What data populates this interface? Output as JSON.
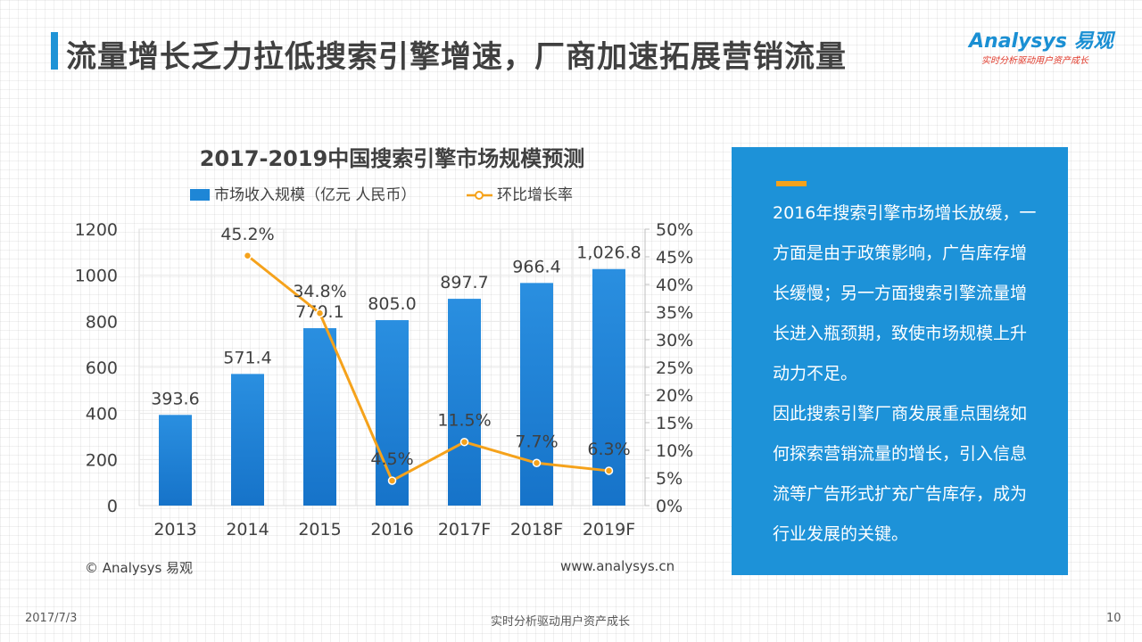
{
  "header": {
    "title": "流量增长乏力拉低搜索引擎增速，厂商加速拓展营销流量",
    "logo_name": "Analysys 易观",
    "logo_tagline": "实时分析驱动用户资产成长"
  },
  "chart_data": {
    "type": "bar+line",
    "title": "2017-2019中国搜索引擎市场规模预测",
    "categories": [
      "2013",
      "2014",
      "2015",
      "2016",
      "2017F",
      "2018F",
      "2019F"
    ],
    "series": [
      {
        "name": "市场收入规模（亿元 人民币）",
        "type": "bar",
        "axis": "left",
        "values": [
          393.6,
          571.4,
          770.1,
          805.0,
          897.7,
          966.4,
          1026.8
        ],
        "labels": [
          "393.6",
          "571.4",
          "770.1",
          "805.0",
          "897.7",
          "966.4",
          "1,026.8"
        ]
      },
      {
        "name": "环比增长率",
        "type": "line",
        "axis": "right",
        "values": [
          null,
          45.2,
          34.8,
          4.5,
          11.5,
          7.7,
          6.3
        ],
        "labels": [
          "",
          "45.2%",
          "34.8%",
          "4.5%",
          "11.5%",
          "7.7%",
          "6.3%"
        ]
      }
    ],
    "y_left": {
      "min": 0,
      "max": 1200,
      "ticks": [
        "0",
        "200",
        "400",
        "600",
        "800",
        "1000",
        "1200"
      ]
    },
    "y_right": {
      "min": 0,
      "max": 50,
      "ticks": [
        "0%",
        "5%",
        "10%",
        "15%",
        "20%",
        "25%",
        "30%",
        "35%",
        "40%",
        "45%",
        "50%"
      ]
    },
    "legend_position": "top",
    "grid": true,
    "colors": {
      "bar": "#1e86d6",
      "line": "#f5a21b"
    }
  },
  "chart_footer": {
    "source": "© Analysys 易观",
    "url": "www.analysys.cn"
  },
  "info": {
    "paragraph1": "2016年搜索引擎市场增长放缓，一方面是由于政策影响，广告库存增长缓慢；另一方面搜索引擎流量增长进入瓶颈期，致使市场规模上升动力不足。",
    "paragraph2": "因此搜索引擎厂商发展重点围绕如何探索营销流量的增长，引入信息流等广告形式扩充广告库存，成为行业发展的关键。"
  },
  "footer": {
    "date": "2017/7/3",
    "center": "实时分析驱动用户资产成长",
    "page": "10"
  }
}
